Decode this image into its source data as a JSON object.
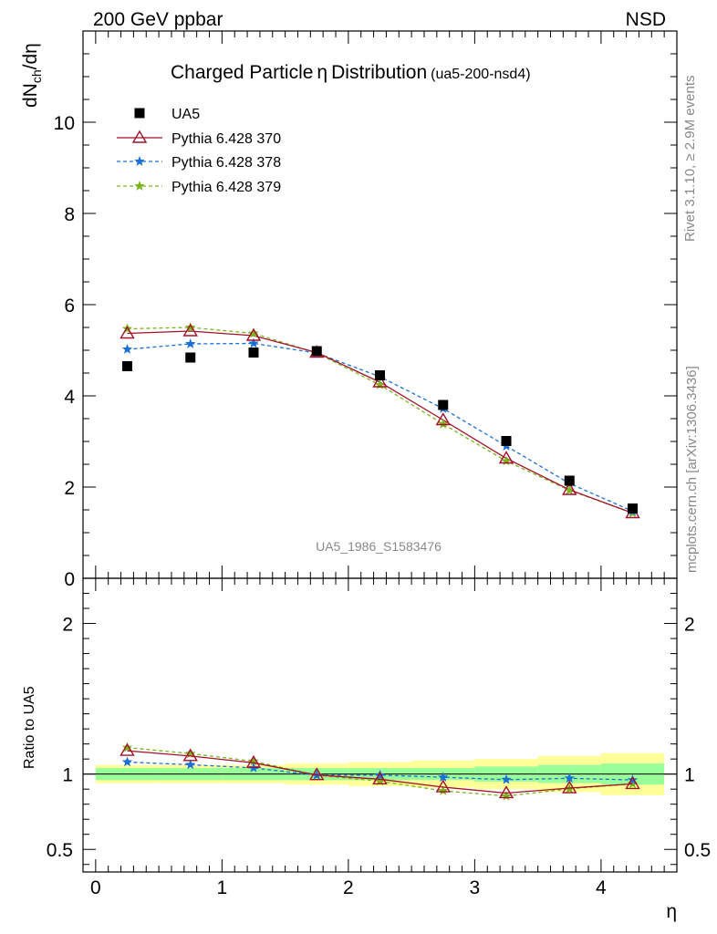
{
  "header": {
    "left": "200 GeV ppbar",
    "right": "NSD"
  },
  "title": {
    "main": "Charged Particle",
    "symbol": "η",
    "main2": "Distribution",
    "tag": "(ua5-200-nsd4)"
  },
  "ylabel_top": {
    "base": "dN",
    "sub": "ch",
    "rest": "/dη"
  },
  "ylabel_bottom": "Ratio to UA5",
  "xlabel": "η",
  "watermark": "UA5_1986_S1583476",
  "side_text_top": "Rivet 3.1.10, ≥ 2.9M events",
  "side_text_bottom": "mcplots.cern.ch [arXiv:1306.3436]",
  "colors": {
    "ua5": "#000000",
    "py370": "#a3112a",
    "py378": "#1a6fd6",
    "py379": "#7ab51d",
    "band_inner": "#99ff99",
    "band_outer": "#ffff99"
  },
  "chart_data": [
    {
      "type": "scatter",
      "panel": "main",
      "x": [
        0.25,
        0.75,
        1.25,
        1.75,
        2.25,
        2.75,
        3.25,
        3.75,
        4.25
      ],
      "xlim": [
        -0.1,
        4.6
      ],
      "ylim": [
        0,
        12
      ],
      "yticks": [
        0,
        2,
        4,
        6,
        8,
        10
      ],
      "ytick_labels": [
        "0",
        "2",
        "4",
        "6",
        "8",
        "10"
      ],
      "series": [
        {
          "name": "UA5",
          "marker": "square",
          "values": [
            4.65,
            4.84,
            4.95,
            4.98,
            4.45,
            3.8,
            3.01,
            2.14,
            1.53
          ]
        },
        {
          "name": "Pythia 6.428 370",
          "marker": "triangle",
          "values": [
            5.37,
            5.42,
            5.32,
            4.95,
            4.3,
            3.47,
            2.63,
            1.94,
            1.43
          ]
        },
        {
          "name": "Pythia 6.428 378",
          "marker": "star",
          "values": [
            5.02,
            5.14,
            5.15,
            4.94,
            4.42,
            3.72,
            2.9,
            2.08,
            1.47
          ]
        },
        {
          "name": "Pythia 6.428 379",
          "marker": "star",
          "values": [
            5.47,
            5.5,
            5.37,
            4.94,
            4.24,
            3.38,
            2.57,
            1.93,
            1.43
          ]
        }
      ]
    },
    {
      "type": "line",
      "panel": "ratio",
      "x": [
        0.25,
        0.75,
        1.25,
        1.75,
        2.25,
        2.75,
        3.25,
        3.75,
        4.25
      ],
      "xlim": [
        -0.1,
        4.6
      ],
      "ylim": [
        0.35,
        2.3
      ],
      "xticks": [
        0,
        1,
        2,
        3,
        4
      ],
      "xtick_labels": [
        "0",
        "1",
        "2",
        "3",
        "4"
      ],
      "yticks": [
        0.5,
        1,
        2
      ],
      "ytick_labels": [
        "0.5",
        "1",
        "2"
      ],
      "band_inner": [
        0.04,
        0.04,
        0.04,
        0.04,
        0.04,
        0.04,
        0.05,
        0.06,
        0.07
      ],
      "band_outer": [
        0.06,
        0.06,
        0.06,
        0.07,
        0.08,
        0.09,
        0.1,
        0.12,
        0.14
      ],
      "series": [
        {
          "name": "Pythia 6.428 370",
          "values": [
            1.155,
            1.12,
            1.075,
            0.994,
            0.966,
            0.913,
            0.874,
            0.907,
            0.935
          ]
        },
        {
          "name": "Pythia 6.428 378",
          "values": [
            1.08,
            1.062,
            1.041,
            0.992,
            0.993,
            0.979,
            0.963,
            0.972,
            0.961
          ]
        },
        {
          "name": "Pythia 6.428 379",
          "values": [
            1.176,
            1.136,
            1.085,
            0.992,
            0.953,
            0.889,
            0.854,
            0.902,
            0.935
          ]
        }
      ]
    }
  ]
}
